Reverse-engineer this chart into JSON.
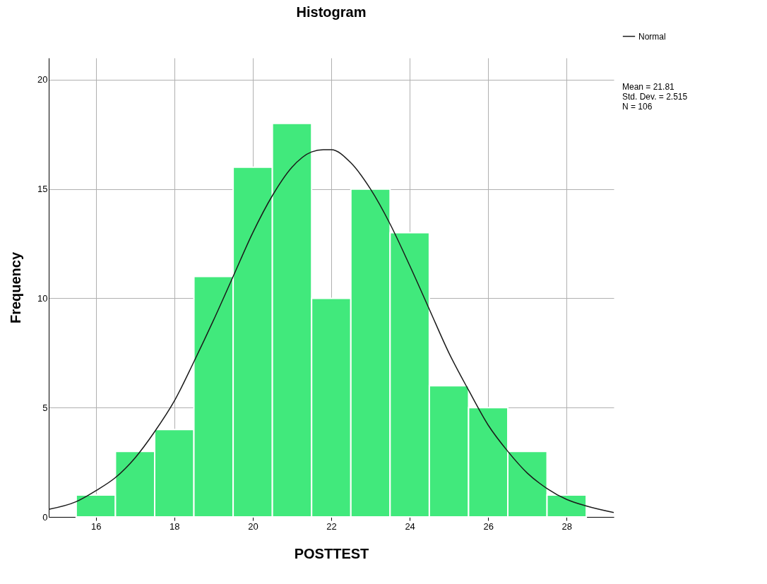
{
  "chart_data": {
    "type": "histogram",
    "title": "Histogram",
    "xlabel": "POSTTEST",
    "ylabel": "Frequency",
    "bins": [
      15.5,
      16.5,
      17.5,
      18.5,
      19.5,
      20.5,
      21.5,
      22.5,
      23.5,
      24.5,
      25.5,
      26.5,
      27.5,
      28.5
    ],
    "series": [
      {
        "color": "#41e97c",
        "values": [
          1,
          3,
          4,
          11,
          16,
          18,
          10,
          15,
          13,
          6,
          5,
          3,
          1
        ]
      },
      {
        "type": "line",
        "name": "Normal",
        "color": "#1a1a1a",
        "x": [
          14.8,
          15.5,
          16,
          16.5,
          17,
          17.5,
          18,
          18.5,
          19,
          19.5,
          20,
          20.5,
          21,
          21.5,
          21.8,
          22,
          22.5,
          23,
          23.5,
          24,
          24.5,
          25,
          25.5,
          26,
          26.5,
          27,
          27.5,
          28,
          28.5,
          29.2
        ],
        "values": [
          0.35,
          0.7,
          1.2,
          1.8,
          2.7,
          3.9,
          5.3,
          7.1,
          9.0,
          11.0,
          13.0,
          14.7,
          16.0,
          16.7,
          16.8,
          16.8,
          16.2,
          15.0,
          13.4,
          11.5,
          9.5,
          7.5,
          5.8,
          4.2,
          3.0,
          2.0,
          1.3,
          0.8,
          0.5,
          0.2
        ]
      }
    ],
    "xlim": [
      14.8,
      29.2
    ],
    "xticks": [
      16,
      18,
      20,
      22,
      24,
      26,
      28
    ],
    "ylim": [
      0,
      21
    ],
    "yticks": [
      0,
      5,
      10,
      15,
      20
    ],
    "grid": true,
    "legend": "top right",
    "annotations": [
      "Mean = 21.81",
      "Std. Dev. = 2.515",
      "N = 106"
    ]
  }
}
